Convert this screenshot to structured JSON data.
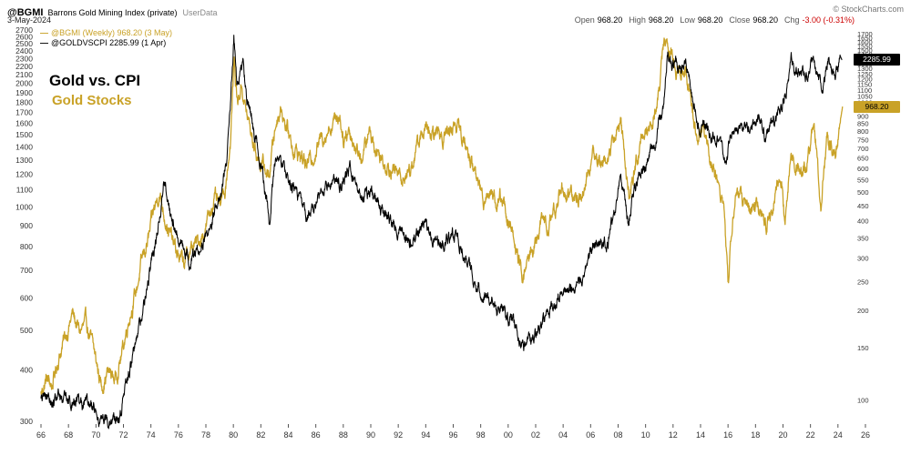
{
  "header": {
    "symbol": "@BGMI",
    "title": "Barrons Gold Mining Index (private)",
    "source": "UserData",
    "date": "3-May-2024",
    "copyright": "© StockCharts.com",
    "quote": {
      "open_label": "Open",
      "open": "968.20",
      "high_label": "High",
      "high": "968.20",
      "low_label": "Low",
      "low": "968.20",
      "close_label": "Close",
      "close": "968.20",
      "chg_label": "Chg",
      "chg": "-3.00 (-0.31%)"
    }
  },
  "legend": {
    "series1": "@BGMI (Weekly) 968.20 (3 May)",
    "series2": "@GOLDVSCPI 2285.99 (1 Apr)"
  },
  "annotations": {
    "line1": "Gold vs. CPI",
    "line2": "Gold Stocks"
  },
  "price_flags": {
    "black": "2285.99",
    "gold": "968.20"
  },
  "colors": {
    "gold": "#C9A227",
    "black": "#000000",
    "red": "#CC0000",
    "axis_text": "#333333"
  },
  "chart_data": {
    "type": "line",
    "title": "Gold vs. CPI / Gold Stocks",
    "x_ticks": [
      "66",
      "68",
      "70",
      "72",
      "74",
      "76",
      "78",
      "80",
      "82",
      "84",
      "86",
      "88",
      "90",
      "92",
      "94",
      "96",
      "98",
      "00",
      "02",
      "04",
      "06",
      "08",
      "10",
      "12",
      "14",
      "16",
      "18",
      "20",
      "22",
      "24",
      "26"
    ],
    "x_range_years": [
      1966,
      2026
    ],
    "left_axis": {
      "min": 300,
      "max": 2700,
      "step": 100,
      "scale": "log"
    },
    "right_axis": {
      "min": 100,
      "max": 1700,
      "step": 50,
      "scale": "log"
    },
    "series": [
      {
        "name": "@BGMI (Weekly)",
        "axis": "right",
        "color": "#C9A227",
        "last_value": 968.2,
        "last_date": "3 May",
        "points": [
          [
            1966.0,
            105
          ],
          [
            1966.4,
            118
          ],
          [
            1966.8,
            112
          ],
          [
            1967.3,
            140
          ],
          [
            1967.8,
            165
          ],
          [
            1968.3,
            195
          ],
          [
            1968.8,
            170
          ],
          [
            1969.3,
            180
          ],
          [
            1969.8,
            150
          ],
          [
            1970.4,
            112
          ],
          [
            1970.9,
            125
          ],
          [
            1971.4,
            118
          ],
          [
            1971.9,
            145
          ],
          [
            1972.4,
            190
          ],
          [
            1972.9,
            230
          ],
          [
            1973.4,
            300
          ],
          [
            1973.9,
            360
          ],
          [
            1974.2,
            430
          ],
          [
            1974.6,
            500
          ],
          [
            1975.0,
            420
          ],
          [
            1975.4,
            360
          ],
          [
            1975.9,
            310
          ],
          [
            1976.4,
            290
          ],
          [
            1976.9,
            320
          ],
          [
            1977.4,
            340
          ],
          [
            1977.9,
            370
          ],
          [
            1978.3,
            430
          ],
          [
            1978.6,
            480
          ],
          [
            1979.0,
            440
          ],
          [
            1979.4,
            520
          ],
          [
            1979.8,
            750
          ],
          [
            1980.05,
            1400
          ],
          [
            1980.3,
            1000
          ],
          [
            1980.6,
            1150
          ],
          [
            1980.9,
            950
          ],
          [
            1981.3,
            780
          ],
          [
            1981.8,
            650
          ],
          [
            1982.3,
            600
          ],
          [
            1982.6,
            560
          ],
          [
            1982.9,
            750
          ],
          [
            1983.2,
            900
          ],
          [
            1983.5,
            970
          ],
          [
            1983.9,
            820
          ],
          [
            1984.4,
            700
          ],
          [
            1984.9,
            660
          ],
          [
            1985.4,
            620
          ],
          [
            1985.9,
            680
          ],
          [
            1986.4,
            760
          ],
          [
            1986.9,
            820
          ],
          [
            1987.4,
            880
          ],
          [
            1987.75,
            920
          ],
          [
            1988.0,
            760
          ],
          [
            1988.4,
            820
          ],
          [
            1988.9,
            700
          ],
          [
            1989.4,
            660
          ],
          [
            1989.9,
            800
          ],
          [
            1990.4,
            700
          ],
          [
            1990.9,
            640
          ],
          [
            1991.4,
            610
          ],
          [
            1991.9,
            580
          ],
          [
            1992.4,
            560
          ],
          [
            1992.9,
            600
          ],
          [
            1993.4,
            720
          ],
          [
            1993.9,
            820
          ],
          [
            1994.4,
            760
          ],
          [
            1994.9,
            800
          ],
          [
            1995.4,
            780
          ],
          [
            1995.9,
            830
          ],
          [
            1996.2,
            860
          ],
          [
            1996.7,
            760
          ],
          [
            1997.2,
            650
          ],
          [
            1997.7,
            560
          ],
          [
            1998.2,
            480
          ],
          [
            1998.7,
            520
          ],
          [
            1999.2,
            450
          ],
          [
            1999.6,
            490
          ],
          [
            2000.0,
            400
          ],
          [
            2000.5,
            330
          ],
          [
            2001.0,
            260
          ],
          [
            2001.4,
            290
          ],
          [
            2001.9,
            330
          ],
          [
            2002.4,
            400
          ],
          [
            2002.9,
            380
          ],
          [
            2003.4,
            440
          ],
          [
            2003.9,
            520
          ],
          [
            2004.4,
            490
          ],
          [
            2004.9,
            470
          ],
          [
            2005.4,
            500
          ],
          [
            2005.9,
            600
          ],
          [
            2006.3,
            680
          ],
          [
            2006.8,
            620
          ],
          [
            2007.3,
            680
          ],
          [
            2007.8,
            760
          ],
          [
            2008.2,
            900
          ],
          [
            2008.55,
            600
          ],
          [
            2008.8,
            460
          ],
          [
            2009.2,
            600
          ],
          [
            2009.7,
            750
          ],
          [
            2010.2,
            820
          ],
          [
            2010.7,
            950
          ],
          [
            2011.0,
            1100
          ],
          [
            2011.35,
            1650
          ],
          [
            2011.7,
            1500
          ],
          [
            2012.0,
            1400
          ],
          [
            2012.4,
            1250
          ],
          [
            2012.9,
            1350
          ],
          [
            2013.3,
            950
          ],
          [
            2013.8,
            800
          ],
          [
            2014.2,
            850
          ],
          [
            2014.7,
            650
          ],
          [
            2015.2,
            560
          ],
          [
            2015.7,
            450
          ],
          [
            2016.0,
            245
          ],
          [
            2016.3,
            380
          ],
          [
            2016.6,
            520
          ],
          [
            2016.9,
            480
          ],
          [
            2017.4,
            450
          ],
          [
            2017.9,
            440
          ],
          [
            2018.4,
            420
          ],
          [
            2018.8,
            380
          ],
          [
            2019.2,
            420
          ],
          [
            2019.6,
            540
          ],
          [
            2019.9,
            560
          ],
          [
            2020.15,
            380
          ],
          [
            2020.55,
            690
          ],
          [
            2020.9,
            620
          ],
          [
            2021.3,
            580
          ],
          [
            2021.7,
            640
          ],
          [
            2022.2,
            830
          ],
          [
            2022.45,
            700
          ],
          [
            2022.75,
            450
          ],
          [
            2023.0,
            620
          ],
          [
            2023.25,
            760
          ],
          [
            2023.6,
            680
          ],
          [
            2023.85,
            640
          ],
          [
            2024.05,
            780
          ],
          [
            2024.2,
            900
          ],
          [
            2024.33,
            968.2
          ]
        ]
      },
      {
        "name": "@GOLDVSCPI",
        "axis": "left",
        "color": "#000000",
        "last_value": 2285.99,
        "last_date": "1 Apr",
        "points": [
          [
            1966.0,
            340
          ],
          [
            1966.5,
            345
          ],
          [
            1967.0,
            338
          ],
          [
            1967.5,
            348
          ],
          [
            1968.0,
            335
          ],
          [
            1968.4,
            345
          ],
          [
            1968.9,
            330
          ],
          [
            1969.4,
            335
          ],
          [
            1969.9,
            318
          ],
          [
            1970.3,
            300
          ],
          [
            1970.8,
            292
          ],
          [
            1971.3,
            305
          ],
          [
            1971.8,
            320
          ],
          [
            1972.2,
            370
          ],
          [
            1972.7,
            430
          ],
          [
            1973.2,
            520
          ],
          [
            1973.7,
            620
          ],
          [
            1974.1,
            750
          ],
          [
            1974.5,
            900
          ],
          [
            1974.95,
            1150
          ],
          [
            1975.4,
            1000
          ],
          [
            1975.9,
            880
          ],
          [
            1976.4,
            780
          ],
          [
            1976.8,
            730
          ],
          [
            1977.3,
            780
          ],
          [
            1977.8,
            820
          ],
          [
            1978.3,
            900
          ],
          [
            1978.7,
            1020
          ],
          [
            1979.1,
            1100
          ],
          [
            1979.5,
            1300
          ],
          [
            1979.8,
            1800
          ],
          [
            1980.04,
            2650
          ],
          [
            1980.25,
            1950
          ],
          [
            1980.45,
            2100
          ],
          [
            1980.7,
            2250
          ],
          [
            1981.0,
            1800
          ],
          [
            1981.4,
            1600
          ],
          [
            1981.9,
            1350
          ],
          [
            1982.4,
            1050
          ],
          [
            1982.6,
            920
          ],
          [
            1982.9,
            1150
          ],
          [
            1983.1,
            1300
          ],
          [
            1983.4,
            1340
          ],
          [
            1983.9,
            1180
          ],
          [
            1984.4,
            1120
          ],
          [
            1984.9,
            1030
          ],
          [
            1985.3,
            930
          ],
          [
            1985.8,
            980
          ],
          [
            1986.3,
            1080
          ],
          [
            1986.8,
            1120
          ],
          [
            1987.3,
            1160
          ],
          [
            1987.8,
            1100
          ],
          [
            1988.2,
            1230
          ],
          [
            1988.5,
            1250
          ],
          [
            1988.9,
            1130
          ],
          [
            1989.4,
            1050
          ],
          [
            1989.9,
            1080
          ],
          [
            1990.4,
            1030
          ],
          [
            1990.9,
            960
          ],
          [
            1991.4,
            920
          ],
          [
            1991.9,
            890
          ],
          [
            1992.4,
            850
          ],
          [
            1992.9,
            810
          ],
          [
            1993.3,
            870
          ],
          [
            1993.8,
            900
          ],
          [
            1994.3,
            860
          ],
          [
            1994.8,
            840
          ],
          [
            1995.3,
            830
          ],
          [
            1995.8,
            845
          ],
          [
            1996.2,
            850
          ],
          [
            1996.7,
            800
          ],
          [
            1997.2,
            720
          ],
          [
            1997.7,
            650
          ],
          [
            1998.2,
            620
          ],
          [
            1998.7,
            600
          ],
          [
            1999.2,
            560
          ],
          [
            1999.5,
            580
          ],
          [
            1999.8,
            540
          ],
          [
            2000.2,
            530
          ],
          [
            2000.7,
            490
          ],
          [
            2001.1,
            455
          ],
          [
            2001.5,
            465
          ],
          [
            2001.9,
            475
          ],
          [
            2002.4,
            510
          ],
          [
            2002.9,
            550
          ],
          [
            2003.4,
            570
          ],
          [
            2003.9,
            610
          ],
          [
            2004.4,
            625
          ],
          [
            2004.9,
            640
          ],
          [
            2005.4,
            660
          ],
          [
            2005.9,
            740
          ],
          [
            2006.3,
            830
          ],
          [
            2006.8,
            790
          ],
          [
            2007.3,
            840
          ],
          [
            2007.8,
            980
          ],
          [
            2008.15,
            1180
          ],
          [
            2008.5,
            1050
          ],
          [
            2008.75,
            900
          ],
          [
            2009.1,
            1080
          ],
          [
            2009.6,
            1180
          ],
          [
            2010.1,
            1280
          ],
          [
            2010.6,
            1420
          ],
          [
            2011.0,
            1600
          ],
          [
            2011.3,
            1750
          ],
          [
            2011.6,
            2400
          ],
          [
            2011.9,
            2150
          ],
          [
            2012.2,
            2250
          ],
          [
            2012.6,
            2100
          ],
          [
            2012.9,
            2200
          ],
          [
            2013.2,
            2050
          ],
          [
            2013.5,
            1750
          ],
          [
            2013.9,
            1550
          ],
          [
            2014.2,
            1620
          ],
          [
            2014.6,
            1500
          ],
          [
            2015.0,
            1480
          ],
          [
            2015.4,
            1420
          ],
          [
            2015.9,
            1300
          ],
          [
            2016.3,
            1520
          ],
          [
            2016.7,
            1600
          ],
          [
            2017.1,
            1500
          ],
          [
            2017.5,
            1550
          ],
          [
            2017.9,
            1600
          ],
          [
            2018.3,
            1620
          ],
          [
            2018.7,
            1480
          ],
          [
            2019.0,
            1550
          ],
          [
            2019.4,
            1600
          ],
          [
            2019.8,
            1780
          ],
          [
            2020.1,
            1850
          ],
          [
            2020.4,
            2050
          ],
          [
            2020.6,
            2350
          ],
          [
            2020.9,
            2200
          ],
          [
            2021.3,
            2080
          ],
          [
            2021.6,
            2100
          ],
          [
            2021.9,
            2150
          ],
          [
            2022.2,
            2300
          ],
          [
            2022.5,
            2150
          ],
          [
            2022.8,
            1900
          ],
          [
            2023.1,
            2150
          ],
          [
            2023.35,
            2300
          ],
          [
            2023.6,
            2150
          ],
          [
            2023.8,
            2050
          ],
          [
            2024.0,
            2200
          ],
          [
            2024.15,
            2350
          ],
          [
            2024.28,
            2285.99
          ]
        ]
      }
    ]
  }
}
